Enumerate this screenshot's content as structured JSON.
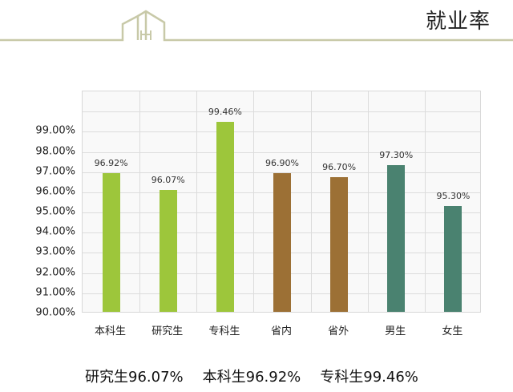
{
  "header": {
    "title": "就业率",
    "line_color": "#c8c9a8"
  },
  "chart_data": {
    "type": "bar",
    "title": "就业率",
    "xlabel": "",
    "ylabel": "",
    "ylim": [
      90,
      101
    ],
    "grid": true,
    "legend": "none",
    "yticks": [
      "90.00%",
      "91.00%",
      "92.00%",
      "93.00%",
      "94.00%",
      "95.00%",
      "96.00%",
      "97.00%",
      "98.00%",
      "99.00%"
    ],
    "categories": [
      "本科生",
      "研究生",
      "专科生",
      "省内",
      "省外",
      "男生",
      "女生"
    ],
    "values": [
      96.92,
      96.07,
      99.46,
      96.9,
      96.7,
      97.3,
      95.3
    ],
    "value_labels": [
      "96.92%",
      "96.07%",
      "99.46%",
      "96.90%",
      "96.70%",
      "97.30%",
      "95.30%"
    ],
    "colors": [
      "#9dc63b",
      "#9dc63b",
      "#9dc63b",
      "#9c7035",
      "#9c7035",
      "#4a8270",
      "#4a8270"
    ]
  },
  "summary": {
    "items": [
      "研究生96.07%",
      "本科生96.92%",
      "专科生99.46%"
    ]
  }
}
